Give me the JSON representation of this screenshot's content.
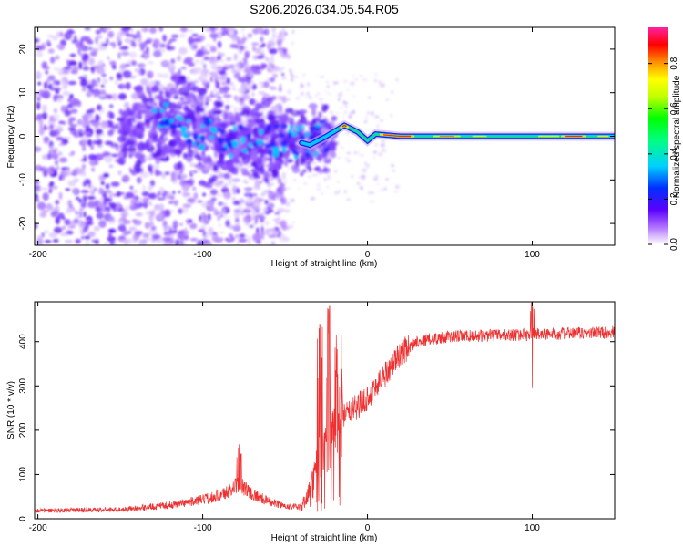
{
  "title": "S206.2026.034.05.54.R05",
  "chart_data": [
    {
      "type": "heatmap",
      "xlabel": "Height of straight line (km)",
      "ylabel": "Frequency (Hz)",
      "xlim": [
        -202,
        150
      ],
      "ylim": [
        -25,
        25
      ],
      "xticks": [
        -200,
        -100,
        0,
        100
      ],
      "yticks": [
        -20,
        -10,
        0,
        10,
        20
      ],
      "colorbar": {
        "label": "Normalized spectral amplitude",
        "ticks": [
          "0.0",
          "0.2",
          "0.4",
          "0.6",
          "0.8"
        ],
        "range": [
          0,
          0.96
        ]
      },
      "ridge": [
        {
          "x": -140,
          "f": 1.5
        },
        {
          "x": -120,
          "f": 3.5
        },
        {
          "x": -100,
          "f": 1.0
        },
        {
          "x": -80,
          "f": -1.0
        },
        {
          "x": -60,
          "f": -2.0
        },
        {
          "x": -45,
          "f": -1.0
        },
        {
          "x": -35,
          "f": -2.0
        },
        {
          "x": -25,
          "f": 0.0
        },
        {
          "x": -14,
          "f": 2.5
        },
        {
          "x": -6,
          "f": 1.0
        },
        {
          "x": 0,
          "f": -1.0
        },
        {
          "x": 5,
          "f": 0.5
        },
        {
          "x": 20,
          "f": 0.0
        },
        {
          "x": 150,
          "f": 0.0
        }
      ]
    },
    {
      "type": "line",
      "xlabel": "Height of straight line (km)",
      "ylabel": "SNR (10 * v/v)",
      "xlim": [
        -202,
        150
      ],
      "ylim": [
        0,
        490
      ],
      "xticks": [
        -200,
        -100,
        0,
        100
      ],
      "yticks": [
        0,
        100,
        200,
        300,
        400
      ],
      "color": "#f03030",
      "envelope": [
        {
          "x": -202,
          "y": 18
        },
        {
          "x": -150,
          "y": 20
        },
        {
          "x": -120,
          "y": 30
        },
        {
          "x": -100,
          "y": 42
        },
        {
          "x": -85,
          "y": 58
        },
        {
          "x": -78,
          "y": 78
        },
        {
          "x": -70,
          "y": 55
        },
        {
          "x": -60,
          "y": 38
        },
        {
          "x": -50,
          "y": 28
        },
        {
          "x": -40,
          "y": 25
        },
        {
          "x": -35,
          "y": 60
        },
        {
          "x": -30,
          "y": 120
        },
        {
          "x": -25,
          "y": 160
        },
        {
          "x": -20,
          "y": 210
        },
        {
          "x": -10,
          "y": 240
        },
        {
          "x": 0,
          "y": 270
        },
        {
          "x": 10,
          "y": 320
        },
        {
          "x": 20,
          "y": 370
        },
        {
          "x": 30,
          "y": 400
        },
        {
          "x": 50,
          "y": 410
        },
        {
          "x": 100,
          "y": 415
        },
        {
          "x": 150,
          "y": 420
        }
      ],
      "peaks": [
        {
          "x": -78,
          "y": 168
        },
        {
          "x": -23,
          "y": 480
        },
        {
          "x": -29,
          "y": 440
        },
        {
          "x": -19,
          "y": 415
        },
        {
          "x": 100,
          "y": 490
        }
      ],
      "dips": [
        {
          "x": 100,
          "y": 295
        }
      ]
    }
  ]
}
